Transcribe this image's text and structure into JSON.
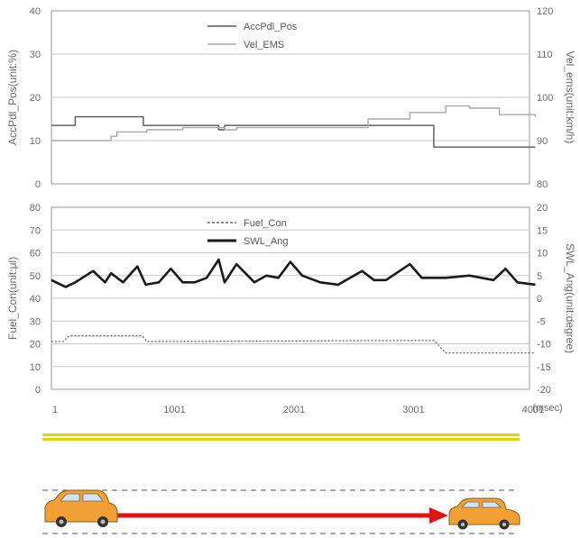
{
  "chart_data": [
    {
      "type": "line",
      "ylabel": "AccPdl_Pos(unit:%)",
      "y2label": "Vel_ems(unit:km/h)",
      "ylim": [
        0,
        40
      ],
      "y2lim": [
        80,
        120
      ],
      "yticks": [
        "0",
        "10",
        "20",
        "30",
        "40"
      ],
      "y2ticks": [
        "80",
        "90",
        "100",
        "110",
        "120"
      ],
      "grid": true,
      "legend_placement": "top-center",
      "series": [
        {
          "name": "AccPdl_Pos",
          "axis": "left",
          "color": "#555555",
          "x": [
            1,
            150,
            200,
            700,
            770,
            1100,
            1400,
            1450,
            3150,
            3200,
            4050
          ],
          "y": [
            13.5,
            13.5,
            15.5,
            15.5,
            13.5,
            13.5,
            12.5,
            13.5,
            13.5,
            8.5,
            8.5
          ]
        },
        {
          "name": "Vel_EMS",
          "axis": "right",
          "color": "#a8a8a8",
          "x": [
            1,
            300,
            500,
            550,
            800,
            1100,
            1450,
            1550,
            2650,
            3000,
            3300,
            3500,
            3750,
            4050
          ],
          "y": [
            90,
            90,
            91,
            92,
            92.5,
            93,
            92.5,
            93,
            95,
            96.5,
            98,
            97.5,
            96,
            95.5
          ]
        }
      ]
    },
    {
      "type": "line",
      "xlabel": "(msec)",
      "ylabel": "Fuel_Con(unit:μl)",
      "y2label": "SWL_Ang(unit:degree)",
      "ylim": [
        0,
        80
      ],
      "y2lim": [
        -20,
        20
      ],
      "xlim": [
        1,
        4001
      ],
      "xticks": [
        "1",
        "1001",
        "2001",
        "3001",
        "4001"
      ],
      "yticks": [
        "0",
        "10",
        "20",
        "30",
        "40",
        "50",
        "60",
        "70",
        "80"
      ],
      "y2ticks": [
        "-20",
        "-15",
        "-10",
        "-5",
        "0",
        "5",
        "10",
        "15",
        "20"
      ],
      "grid": true,
      "legend_placement": "top-center",
      "series": [
        {
          "name": "Fuel_Con",
          "axis": "left",
          "color": "#666666",
          "x": [
            1,
            100,
            150,
            760,
            800,
            3200,
            3300,
            4050
          ],
          "y": [
            21,
            21,
            23.5,
            23.5,
            21,
            21.5,
            16,
            16
          ]
        },
        {
          "name": "SWL_Ang",
          "axis": "right",
          "color": "#1a1a1a",
          "x": [
            1,
            120,
            200,
            350,
            450,
            500,
            600,
            720,
            790,
            900,
            1000,
            1100,
            1200,
            1300,
            1400,
            1450,
            1550,
            1700,
            1800,
            1900,
            2000,
            2100,
            2250,
            2400,
            2600,
            2700,
            2800,
            3000,
            3100,
            3300,
            3500,
            3700,
            3800,
            3900,
            4050
          ],
          "y": [
            4,
            2.5,
            3.5,
            6,
            3.5,
            5.5,
            3.5,
            7,
            3,
            3.5,
            6.5,
            3.5,
            3.5,
            4.5,
            8.5,
            3.5,
            7.5,
            3.5,
            5,
            4.5,
            8,
            5,
            3.5,
            3,
            6,
            4,
            4,
            7.5,
            4.5,
            4.5,
            5,
            4,
            6.5,
            3.5,
            3
          ]
        }
      ]
    }
  ]
}
